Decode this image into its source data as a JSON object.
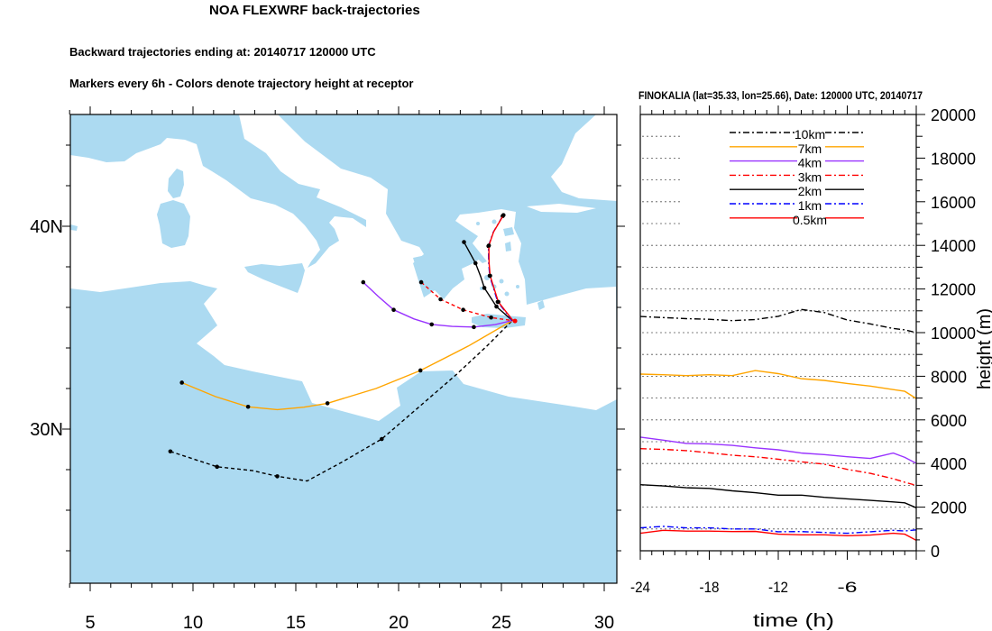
{
  "titles": {
    "main": "NOA FLEXWRF back-trajectories",
    "line2": "Backward trajectories ending at: 20140717  120000 UTC",
    "line3": "Markers every 6h - Colors denote trajectory height at receptor",
    "panel": "FINOKALIA (lat=35.33,  lon=25.66), Date: 120000 UTC, 20140717"
  },
  "colors": {
    "sea_land_fill": "#acdaf1",
    "background": "#ffffff"
  },
  "chart_data": [
    {
      "type": "line",
      "subtype": "map-trajectories",
      "xlabel": "",
      "ylabel": "",
      "xlim": [
        4.0,
        30.6
      ],
      "ylim": [
        22.4,
        45.5
      ],
      "x_ticks": [
        {
          "v": 5,
          "label": "5"
        },
        {
          "v": 10,
          "label": "10"
        },
        {
          "v": 15,
          "label": "15"
        },
        {
          "v": 20,
          "label": "20"
        },
        {
          "v": 25,
          "label": "25"
        },
        {
          "v": 30,
          "label": "30"
        }
      ],
      "y_ticks": [
        {
          "v": 40,
          "label": "40N"
        },
        {
          "v": 30,
          "label": "30N"
        }
      ],
      "receptor": {
        "lon": 25.66,
        "lat": 35.33
      },
      "series": [
        {
          "name": "10km",
          "color": "#000000",
          "style": "dashed",
          "path": [
            [
              8.9,
              28.9
            ],
            [
              11.17,
              28.14
            ],
            [
              12.9,
              27.95
            ],
            [
              14.1,
              27.67
            ],
            [
              15.55,
              27.44
            ],
            [
              17.3,
              28.4
            ],
            [
              19.18,
              29.51
            ],
            [
              21.0,
              31.1
            ],
            [
              22.8,
              32.68
            ],
            [
              24.3,
              34.1
            ],
            [
              25.53,
              35.35
            ]
          ],
          "markers": [
            [
              8.9,
              28.9
            ],
            [
              11.17,
              28.14
            ],
            [
              14.1,
              27.67
            ],
            [
              19.18,
              29.51
            ]
          ]
        },
        {
          "name": "7km",
          "color": "#ffa500",
          "style": "solid",
          "path": [
            [
              9.46,
              32.29
            ],
            [
              11.1,
              31.6
            ],
            [
              12.68,
              31.1
            ],
            [
              14.1,
              30.96
            ],
            [
              15.4,
              31.08
            ],
            [
              16.54,
              31.27
            ],
            [
              18.9,
              32.0
            ],
            [
              21.06,
              32.89
            ],
            [
              23.4,
              34.1
            ],
            [
              25.53,
              35.35
            ]
          ],
          "markers": [
            [
              9.46,
              32.29
            ],
            [
              12.68,
              31.1
            ],
            [
              16.54,
              31.27
            ],
            [
              21.06,
              32.89
            ]
          ]
        },
        {
          "name": "4km",
          "color": "#9933ff",
          "style": "solid",
          "path": [
            [
              18.28,
              37.24
            ],
            [
              19.0,
              36.55
            ],
            [
              19.76,
              35.88
            ],
            [
              20.75,
              35.43
            ],
            [
              21.61,
              35.16
            ],
            [
              22.6,
              35.06
            ],
            [
              23.66,
              35.03
            ],
            [
              24.7,
              35.15
            ],
            [
              25.53,
              35.35
            ]
          ],
          "markers": [
            [
              18.28,
              37.24
            ],
            [
              19.76,
              35.88
            ],
            [
              21.61,
              35.16
            ],
            [
              23.66,
              35.03
            ]
          ]
        },
        {
          "name": "3km",
          "color": "#ff0000",
          "style": "dashed",
          "path": [
            [
              21.1,
              37.24
            ],
            [
              22.04,
              36.4
            ],
            [
              23.14,
              35.88
            ],
            [
              24.5,
              35.5
            ],
            [
              25.53,
              35.35
            ]
          ],
          "markers": [
            [
              21.1,
              37.24
            ],
            [
              22.04,
              36.4
            ],
            [
              23.14,
              35.88
            ],
            [
              24.5,
              35.5
            ]
          ]
        },
        {
          "name": "2km",
          "color": "#000000",
          "style": "solid",
          "path": [
            [
              23.18,
              39.22
            ],
            [
              23.74,
              38.18
            ],
            [
              24.0,
              37.5
            ],
            [
              24.17,
              36.96
            ],
            [
              24.76,
              36.04
            ],
            [
              25.53,
              35.35
            ]
          ],
          "markers": [
            [
              23.18,
              39.22
            ],
            [
              23.74,
              38.18
            ],
            [
              24.17,
              36.96
            ],
            [
              24.76,
              36.04
            ]
          ]
        },
        {
          "name": "1km",
          "color": "#0000ff",
          "style": "dashdot",
          "path": [
            [
              25.06,
              40.5
            ],
            [
              24.6,
              39.7
            ],
            [
              24.37,
              39.02
            ],
            [
              24.38,
              38.2
            ],
            [
              24.43,
              37.56
            ],
            [
              24.82,
              36.27
            ],
            [
              25.53,
              35.35
            ]
          ],
          "markers": [
            [
              25.06,
              40.5
            ],
            [
              24.37,
              39.02
            ],
            [
              24.43,
              37.56
            ],
            [
              24.82,
              36.27
            ]
          ]
        },
        {
          "name": "0.5km",
          "color": "#ff0000",
          "style": "solid",
          "path": [
            [
              25.1,
              40.55
            ],
            [
              24.62,
              39.72
            ],
            [
              24.39,
              39.05
            ],
            [
              24.4,
              38.2
            ],
            [
              24.45,
              37.56
            ],
            [
              24.85,
              36.27
            ],
            [
              25.56,
              35.35
            ]
          ],
          "markers": [
            [
              25.1,
              40.55
            ],
            [
              24.39,
              39.05
            ],
            [
              24.45,
              37.56
            ],
            [
              24.85,
              36.27
            ]
          ]
        }
      ]
    },
    {
      "type": "line",
      "title": "FINOKALIA (lat=35.33,  lon=25.66), Date: 120000 UTC, 20140717",
      "xlabel": "time (h)",
      "ylabel": "height (m)",
      "xlim": [
        -24,
        0
      ],
      "ylim": [
        0,
        20000
      ],
      "grid": "dotted horizontal every 1000",
      "legend_placement": "top-center",
      "x_ticks": [
        {
          "v": -24,
          "label": "-24"
        },
        {
          "v": -18,
          "label": "-18"
        },
        {
          "v": -12,
          "label": "-12"
        },
        {
          "v": -6,
          "label": "-6"
        }
      ],
      "y_ticks": [
        {
          "v": 0,
          "label": "0"
        },
        {
          "v": 2000,
          "label": "2000"
        },
        {
          "v": 4000,
          "label": "4000"
        },
        {
          "v": 6000,
          "label": "6000"
        },
        {
          "v": 8000,
          "label": "8000"
        },
        {
          "v": 10000,
          "label": "10000"
        },
        {
          "v": 12000,
          "label": "12000"
        },
        {
          "v": 14000,
          "label": "14000"
        },
        {
          "v": 16000,
          "label": "16000"
        },
        {
          "v": 18000,
          "label": "18000"
        },
        {
          "v": 20000,
          "label": "20000"
        }
      ],
      "x": [
        -24,
        -22,
        -20,
        -18,
        -16,
        -14,
        -12,
        -10,
        -8,
        -6,
        -4,
        -2,
        -1,
        0
      ],
      "series": [
        {
          "name": "10km",
          "color": "#000000",
          "style": "dashdot",
          "values": [
            10740,
            10690,
            10640,
            10610,
            10550,
            10600,
            10750,
            11060,
            10920,
            10580,
            10400,
            10190,
            10130,
            10000
          ]
        },
        {
          "name": "7km",
          "color": "#ffa500",
          "style": "solid",
          "values": [
            8100,
            8070,
            8030,
            8070,
            8030,
            8260,
            8120,
            7890,
            7810,
            7670,
            7550,
            7390,
            7310,
            6980
          ]
        },
        {
          "name": "4km",
          "color": "#9933ff",
          "style": "solid",
          "values": [
            5210,
            5070,
            4920,
            4900,
            4830,
            4720,
            4630,
            4480,
            4410,
            4310,
            4230,
            4480,
            4280,
            4010
          ]
        },
        {
          "name": "3km",
          "color": "#ff0000",
          "style": "dashdot",
          "values": [
            4680,
            4650,
            4590,
            4490,
            4380,
            4310,
            4200,
            4080,
            3970,
            3730,
            3550,
            3300,
            3140,
            3000
          ]
        },
        {
          "name": "2km",
          "color": "#000000",
          "style": "solid",
          "values": [
            3030,
            2970,
            2890,
            2860,
            2750,
            2660,
            2550,
            2550,
            2450,
            2380,
            2310,
            2240,
            2200,
            1970
          ]
        },
        {
          "name": "1km",
          "color": "#0000ff",
          "style": "dashdot",
          "values": [
            1050,
            1120,
            1050,
            1050,
            1000,
            1000,
            870,
            880,
            840,
            800,
            870,
            940,
            910,
            960
          ]
        },
        {
          "name": "0.5km",
          "color": "#ff0000",
          "style": "solid",
          "values": [
            800,
            940,
            900,
            900,
            880,
            890,
            760,
            730,
            730,
            690,
            720,
            800,
            760,
            480
          ]
        }
      ]
    }
  ]
}
